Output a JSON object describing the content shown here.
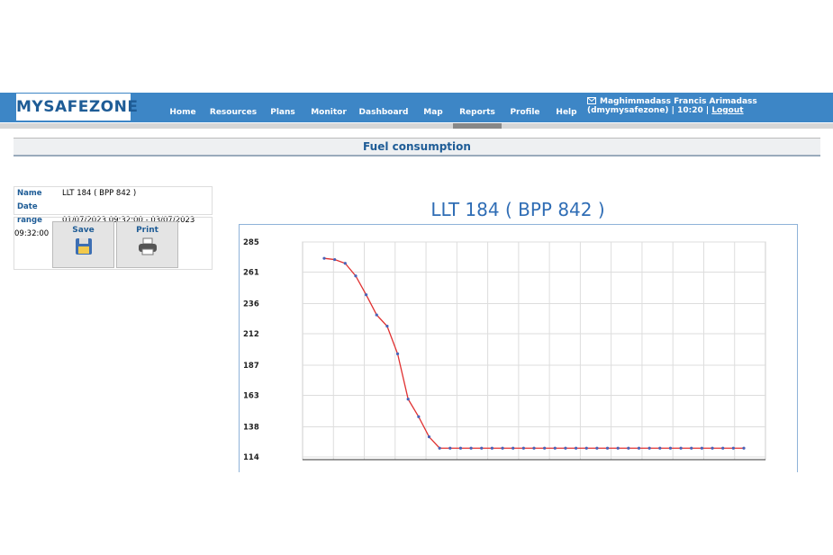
{
  "header": {
    "logo": "MYSAFEZONE",
    "nav": [
      "Home",
      "Resources",
      "Plans",
      "Monitor",
      "Dashboard",
      "Map",
      "Reports",
      "Profile",
      "Help"
    ],
    "user": "Maghimmadass Francis Arimadass (dmymysafezone) | 10:20 |",
    "logout": "Logout"
  },
  "page_title": "Fuel consumption",
  "info": {
    "rows": [
      [
        "Name",
        "LLT 184 ( BPP 842 )"
      ],
      [
        "Date range",
        "01/07/2023 09:32:00 - 03/07/2023 09:32:00"
      ]
    ]
  },
  "buttons": [
    "Save",
    "Print"
  ],
  "chart_data": {
    "type": "line",
    "title": "LLT 184 ( BPP 842 )",
    "values": [
      272,
      271,
      268,
      258,
      243,
      227,
      218,
      196,
      160,
      146,
      130,
      121,
      121,
      121,
      121,
      121,
      121,
      121,
      121,
      121,
      121,
      121,
      121,
      121,
      121,
      121,
      121,
      121,
      121,
      121,
      121,
      121,
      121,
      121,
      121,
      121,
      121,
      121,
      121,
      121,
      121
    ],
    "color": "#e03030",
    "marker_color": "#4a63b8",
    "ylim": [
      114,
      285
    ],
    "yticks": [
      114,
      138,
      163,
      187,
      212,
      236,
      261,
      285
    ],
    "grid": true
  }
}
